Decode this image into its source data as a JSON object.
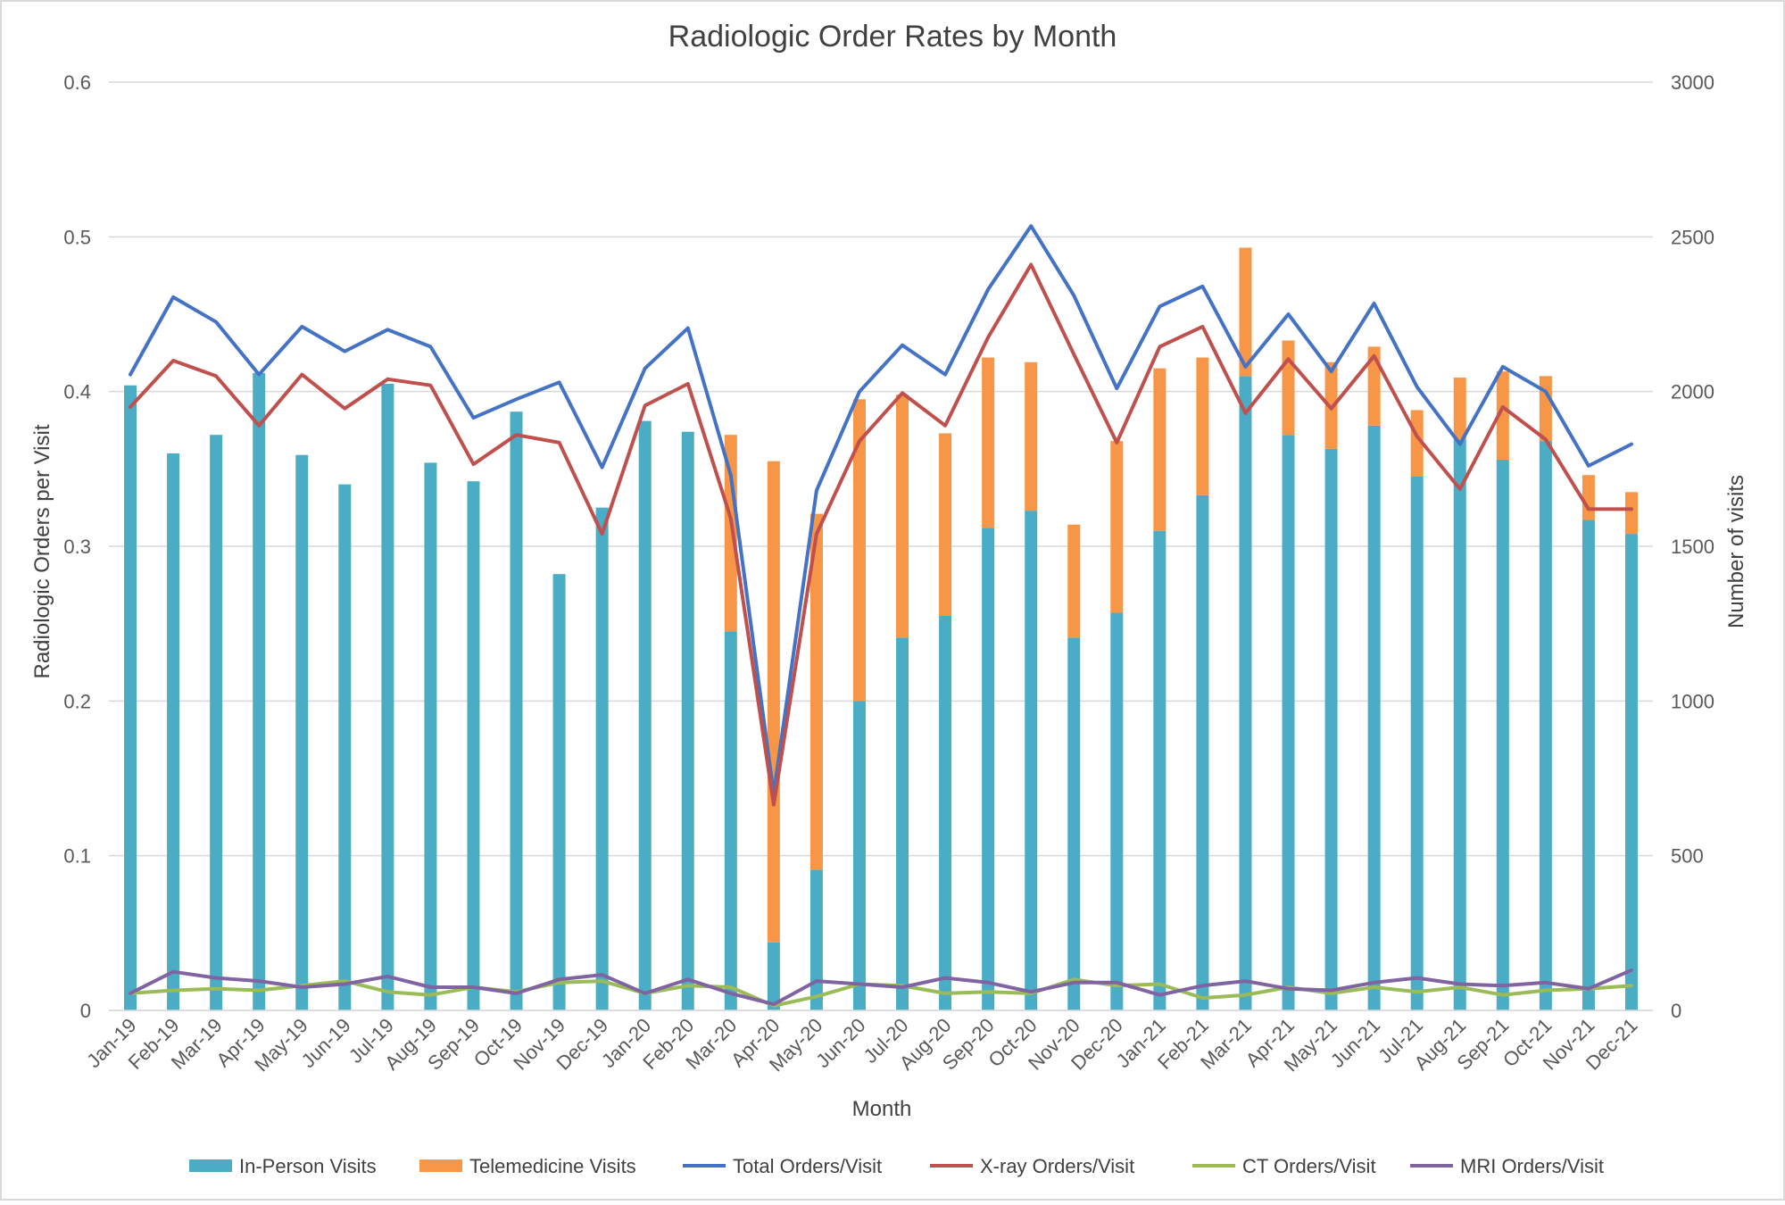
{
  "chart_data": {
    "type": "bar",
    "title": "Radiologic Order Rates by Month",
    "xlabel": "Month",
    "ylabel_left": "Radiologic Orders per Visit",
    "ylabel_right": "Number of visits",
    "ylim_left": [
      0,
      0.6
    ],
    "ylim_right": [
      0,
      3000
    ],
    "yticks_left": [
      "0",
      "0.1",
      "0.2",
      "0.3",
      "0.4",
      "0.5",
      "0.6"
    ],
    "yticks_right": [
      "0",
      "500",
      "1000",
      "1500",
      "2000",
      "2500",
      "3000"
    ],
    "grid": true,
    "legend_position": "bottom",
    "categories": [
      "Jan-19",
      "Feb-19",
      "Mar-19",
      "Apr-19",
      "May-19",
      "Jun-19",
      "Jul-19",
      "Aug-19",
      "Sep-19",
      "Oct-19",
      "Nov-19",
      "Dec-19",
      "Jan-20",
      "Feb-20",
      "Mar-20",
      "Apr-20",
      "May-20",
      "Jun-20",
      "Jul-20",
      "Aug-20",
      "Sep-20",
      "Oct-20",
      "Nov-20",
      "Dec-20",
      "Jan-21",
      "Feb-21",
      "Mar-21",
      "Apr-21",
      "May-21",
      "Jun-21",
      "Jul-21",
      "Aug-21",
      "Sep-21",
      "Oct-21",
      "Nov-21",
      "Dec-21"
    ],
    "bar_series": [
      {
        "name": "In-Person Visits",
        "axis": "right",
        "color": "#4BACC6",
        "values": [
          2020,
          1800,
          1860,
          2060,
          1795,
          1700,
          2025,
          1770,
          1710,
          1935,
          1410,
          1625,
          1905,
          1870,
          1225,
          220,
          455,
          1000,
          1205,
          1275,
          1560,
          1615,
          1205,
          1285,
          1550,
          1665,
          2050,
          1860,
          1815,
          1890,
          1725,
          1845,
          1780,
          1840,
          1585,
          1540
        ]
      },
      {
        "name": "Telemedicine Visits",
        "axis": "right",
        "color": "#F79646",
        "values": [
          0,
          0,
          0,
          0,
          0,
          0,
          0,
          0,
          0,
          0,
          0,
          0,
          0,
          0,
          635,
          1555,
          1150,
          975,
          785,
          590,
          550,
          480,
          365,
          555,
          525,
          445,
          415,
          305,
          280,
          255,
          215,
          200,
          285,
          210,
          145,
          135
        ]
      }
    ],
    "line_series": [
      {
        "name": "Total Orders/Visit",
        "axis": "left",
        "color": "#4472C4",
        "values": [
          0.411,
          0.461,
          0.445,
          0.411,
          0.442,
          0.426,
          0.44,
          0.429,
          0.383,
          0.395,
          0.406,
          0.351,
          0.415,
          0.441,
          0.346,
          0.14,
          0.336,
          0.4,
          0.43,
          0.411,
          0.466,
          0.507,
          0.462,
          0.402,
          0.455,
          0.468,
          0.416,
          0.45,
          0.413,
          0.457,
          0.403,
          0.366,
          0.416,
          0.4,
          0.352,
          0.366
        ]
      },
      {
        "name": "X-ray Orders/Visit",
        "axis": "left",
        "color": "#C0504D",
        "values": [
          0.39,
          0.42,
          0.41,
          0.378,
          0.411,
          0.389,
          0.408,
          0.404,
          0.353,
          0.372,
          0.367,
          0.308,
          0.391,
          0.405,
          0.318,
          0.133,
          0.308,
          0.368,
          0.399,
          0.378,
          0.435,
          0.482,
          0.424,
          0.367,
          0.429,
          0.442,
          0.386,
          0.421,
          0.389,
          0.423,
          0.371,
          0.337,
          0.39,
          0.369,
          0.324,
          0.324
        ]
      },
      {
        "name": "CT Orders/Visit",
        "axis": "left",
        "color": "#9BBB59",
        "values": [
          0.011,
          0.013,
          0.014,
          0.013,
          0.016,
          0.019,
          0.012,
          0.01,
          0.015,
          0.012,
          0.018,
          0.019,
          0.011,
          0.016,
          0.015,
          0.003,
          0.009,
          0.017,
          0.016,
          0.011,
          0.012,
          0.011,
          0.02,
          0.016,
          0.017,
          0.008,
          0.01,
          0.015,
          0.011,
          0.015,
          0.012,
          0.015,
          0.01,
          0.013,
          0.014,
          0.016
        ]
      },
      {
        "name": "MRI Orders/Visit",
        "axis": "left",
        "color": "#8064A2",
        "values": [
          0.011,
          0.025,
          0.021,
          0.019,
          0.015,
          0.017,
          0.022,
          0.015,
          0.015,
          0.011,
          0.02,
          0.023,
          0.011,
          0.02,
          0.011,
          0.004,
          0.019,
          0.017,
          0.015,
          0.021,
          0.018,
          0.012,
          0.018,
          0.018,
          0.01,
          0.016,
          0.019,
          0.014,
          0.013,
          0.018,
          0.021,
          0.017,
          0.016,
          0.018,
          0.014,
          0.026
        ]
      }
    ]
  }
}
